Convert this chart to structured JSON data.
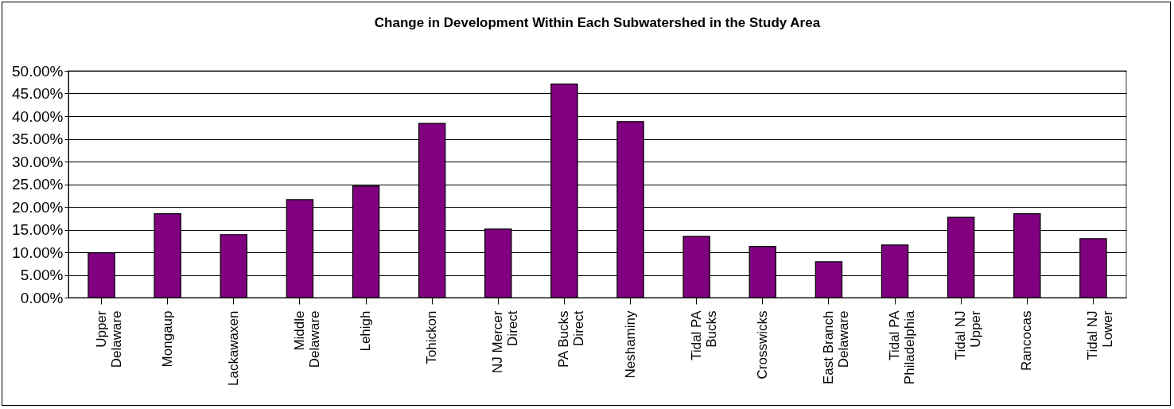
{
  "chart_data": {
    "type": "bar",
    "title": "Change in Development Within Each Subwatershed in the Study Area",
    "categories": [
      "Upper Delaware",
      "Mongaup",
      "Lackawaxen",
      "Middle Delaware",
      "Lehigh",
      "Tohickon",
      "NJ Mercer Direct",
      "PA Bucks Direct",
      "Neshaminy",
      "Tidal PA Bucks",
      "Crosswicks",
      "East Branch Delaware",
      "Tidal PA Philadelphia",
      "Tidal NJ Upper",
      "Rancocas",
      "Tidal NJ Lower"
    ],
    "values": [
      9.9,
      18.5,
      13.9,
      21.6,
      24.6,
      38.4,
      15.1,
      47.1,
      38.8,
      13.5,
      11.3,
      7.9,
      11.6,
      17.7,
      18.5,
      13.0
    ],
    "color": "#800080",
    "ylim": [
      0,
      50
    ],
    "yticks": [
      {
        "value": 0,
        "label": "0.00%"
      },
      {
        "value": 5,
        "label": "5.00%"
      },
      {
        "value": 10,
        "label": "10.00%"
      },
      {
        "value": 15,
        "label": "15.00%"
      },
      {
        "value": 20,
        "label": "20.00%"
      },
      {
        "value": 25,
        "label": "25.00%"
      },
      {
        "value": 30,
        "label": "30.00%"
      },
      {
        "value": 35,
        "label": "35.00%"
      },
      {
        "value": 40,
        "label": "40.00%"
      },
      {
        "value": 45,
        "label": "45.00%"
      },
      {
        "value": 50,
        "label": "50.00%"
      }
    ],
    "grid": "y"
  }
}
